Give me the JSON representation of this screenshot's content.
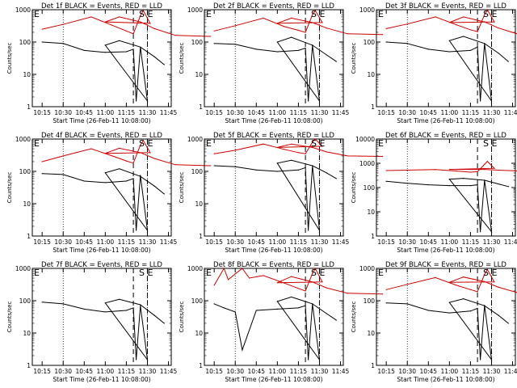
{
  "chart_data": [
    {
      "type": "line",
      "title": "Det 1f BLACK = Events, RED = LLD",
      "ylabel": "Counts/sec",
      "xlabel": "Start Time (26-Feb-11 10:08:00)",
      "yscale": "log",
      "ylim": [
        1,
        1000
      ],
      "y_tick_labels": [
        "1",
        "10",
        "100",
        "1000"
      ],
      "x_tick_labels": [
        "10:15",
        "10:30",
        "10:45",
        "11:00",
        "11:15",
        "11:30",
        "11:45"
      ],
      "markers": {
        "E1": "E",
        "S": "S",
        "E2": "E"
      },
      "series": [
        {
          "color": "#cc0000",
          "x": [
            10.15,
            10.3,
            10.5,
            10.65,
            10.75,
            10.8,
            10.85,
            10.87,
            10.92,
            11.0,
            11.1,
            11.25,
            11.35,
            11.5,
            11.75
          ],
          "y": [
            250,
            350,
            600,
            330,
            220,
            180,
            650,
            950,
            380,
            420,
            600,
            420,
            260,
            160,
            150
          ]
        },
        {
          "color": "#000000",
          "x": [
            10.15,
            10.3,
            10.45,
            10.6,
            10.75,
            10.8,
            10.82,
            10.85,
            10.9,
            11.0,
            11.1,
            11.25,
            11.35,
            11.42
          ],
          "y": [
            100,
            90,
            55,
            48,
            50,
            60,
            1.5,
            70,
            1.5,
            80,
            110,
            70,
            35,
            20
          ]
        }
      ]
    },
    {
      "type": "line",
      "title": "Det 2f BLACK = Events, RED = LLD",
      "ylabel": "Counts/sec",
      "xlabel": "Start Time (26-Feb-11 10:08:00)",
      "yscale": "log",
      "ylim": [
        1,
        1000
      ],
      "y_tick_labels": [
        "1",
        "10",
        "100",
        "1000"
      ],
      "x_tick_labels": [
        "10:15",
        "10:30",
        "10:45",
        "11:00",
        "11:15",
        "11:30",
        "11:45"
      ],
      "markers": {
        "E1": "E",
        "S": "S",
        "E2": "E"
      },
      "series": [
        {
          "color": "#cc0000",
          "x": [
            10.15,
            10.3,
            10.5,
            10.65,
            10.75,
            10.8,
            10.85,
            10.87,
            10.92,
            11.0,
            11.1,
            11.25,
            11.35,
            11.5,
            11.75
          ],
          "y": [
            220,
            320,
            550,
            300,
            230,
            200,
            700,
            950,
            400,
            380,
            550,
            400,
            270,
            180,
            170
          ]
        },
        {
          "color": "#000000",
          "x": [
            10.15,
            10.3,
            10.45,
            10.6,
            10.75,
            10.8,
            10.82,
            10.85,
            10.9,
            11.0,
            11.1,
            11.25,
            11.35,
            11.42
          ],
          "y": [
            90,
            85,
            60,
            50,
            55,
            65,
            1.5,
            80,
            1.5,
            100,
            140,
            80,
            40,
            25
          ]
        }
      ]
    },
    {
      "type": "line",
      "title": "Det 3f BLACK = Events, RED = LLD",
      "ylabel": "Counts/sec",
      "xlabel": "Start Time (26-Feb-11 10:08:00)",
      "yscale": "log",
      "ylim": [
        1,
        1000
      ],
      "y_tick_labels": [
        "1",
        "10",
        "100",
        "1000"
      ],
      "x_tick_labels": [
        "10:15",
        "10:30",
        "10:45",
        "11:00",
        "11:15",
        "11:30",
        "11:45"
      ],
      "markers": {
        "E1": "E",
        "S": "S",
        "E2": "E"
      },
      "series": [
        {
          "color": "#cc0000",
          "x": [
            10.15,
            10.3,
            10.5,
            10.65,
            10.75,
            10.8,
            10.85,
            10.87,
            10.92,
            11.0,
            11.1,
            11.25,
            11.35,
            11.5,
            11.75
          ],
          "y": [
            260,
            360,
            600,
            340,
            240,
            210,
            700,
            1000,
            420,
            400,
            600,
            420,
            270,
            170,
            160
          ]
        },
        {
          "color": "#000000",
          "x": [
            10.15,
            10.3,
            10.45,
            10.6,
            10.75,
            10.8,
            10.82,
            10.85,
            10.9,
            11.0,
            11.1,
            11.25,
            11.35,
            11.42
          ],
          "y": [
            100,
            90,
            60,
            50,
            55,
            70,
            1.5,
            90,
            1.5,
            110,
            150,
            90,
            45,
            25
          ]
        }
      ]
    },
    {
      "type": "line",
      "title": "Det 4f BLACK = Events, RED = LLD",
      "ylabel": "Counts/sec",
      "xlabel": "Start Time (26-Feb-11 10:08:00)",
      "yscale": "log",
      "ylim": [
        1,
        1000
      ],
      "y_tick_labels": [
        "1",
        "10",
        "100",
        "1000"
      ],
      "x_tick_labels": [
        "10:15",
        "10:30",
        "10:45",
        "11:00",
        "11:15",
        "11:30",
        "11:45"
      ],
      "markers": {
        "E1": "E",
        "S": "S",
        "E2": "E"
      },
      "series": [
        {
          "color": "#cc0000",
          "x": [
            10.15,
            10.3,
            10.5,
            10.65,
            10.75,
            10.8,
            10.85,
            10.87,
            10.92,
            11.0,
            11.1,
            11.25,
            11.35,
            11.5,
            11.75
          ],
          "y": [
            200,
            300,
            500,
            300,
            210,
            180,
            650,
            900,
            380,
            360,
            520,
            380,
            250,
            160,
            150
          ]
        },
        {
          "color": "#000000",
          "x": [
            10.15,
            10.3,
            10.45,
            10.6,
            10.75,
            10.8,
            10.82,
            10.85,
            10.9,
            11.0,
            11.1,
            11.25,
            11.35,
            11.42
          ],
          "y": [
            85,
            80,
            50,
            45,
            50,
            60,
            1.5,
            75,
            1.5,
            90,
            120,
            70,
            35,
            20
          ]
        }
      ]
    },
    {
      "type": "line",
      "title": "Det 5f BLACK = Events, RED = LLD",
      "ylabel": "Counts/sec",
      "xlabel": "Start Time (26-Feb-11 10:08:00)",
      "yscale": "log",
      "ylim": [
        1,
        1000
      ],
      "y_tick_labels": [
        "1",
        "10",
        "100",
        "1000"
      ],
      "x_tick_labels": [
        "10:15",
        "10:30",
        "10:45",
        "11:00",
        "11:15",
        "11:30",
        "11:45"
      ],
      "markers": {
        "E1": "E",
        "S": "S",
        "E2": "E"
      },
      "series": [
        {
          "color": "#cc0000",
          "x": [
            10.15,
            10.3,
            10.5,
            10.65,
            10.75,
            10.8,
            10.85,
            10.87,
            10.92,
            11.0,
            11.1,
            11.25,
            11.35,
            11.5,
            11.75
          ],
          "y": [
            350,
            450,
            700,
            480,
            380,
            350,
            800,
            1000,
            600,
            550,
            700,
            550,
            400,
            300,
            290
          ]
        },
        {
          "color": "#000000",
          "x": [
            10.15,
            10.3,
            10.45,
            10.6,
            10.75,
            10.8,
            10.82,
            10.85,
            10.9,
            11.0,
            11.1,
            11.25,
            11.35,
            11.42
          ],
          "y": [
            150,
            140,
            110,
            100,
            110,
            130,
            1.5,
            150,
            1.5,
            180,
            220,
            150,
            90,
            60
          ]
        }
      ]
    },
    {
      "type": "line",
      "title": "Det 6f BLACK = Events, RED = LLD",
      "ylabel": "Counts/sec",
      "xlabel": "Start Time (26-Feb-11 10:08:00)",
      "yscale": "log",
      "ylim": [
        1,
        10000
      ],
      "y_tick_labels": [
        "1",
        "10",
        "100",
        "1000",
        "10000"
      ],
      "x_tick_labels": [
        "10:15",
        "10:30",
        "10:45",
        "11:00",
        "11:15",
        "11:30",
        "11:45"
      ],
      "markers": {
        "E1": "E",
        "S": "S",
        "E2": "E"
      },
      "series": [
        {
          "color": "#cc0000",
          "x": [
            10.15,
            10.3,
            10.5,
            10.65,
            10.75,
            10.8,
            10.85,
            10.87,
            10.92,
            11.0,
            11.1,
            11.25,
            11.35,
            11.5,
            11.75
          ],
          "y": [
            500,
            520,
            550,
            480,
            430,
            450,
            900,
            1200,
            620,
            560,
            560,
            560,
            520,
            480,
            470
          ]
        },
        {
          "color": "#000000",
          "x": [
            10.15,
            10.3,
            10.45,
            10.6,
            10.75,
            10.8,
            10.82,
            10.85,
            10.9,
            11.0,
            11.1,
            11.25,
            11.35,
            11.42
          ],
          "y": [
            180,
            150,
            130,
            120,
            120,
            130,
            1.5,
            200,
            1.5,
            220,
            240,
            200,
            140,
            110
          ]
        }
      ]
    },
    {
      "type": "line",
      "title": "Det 7f BLACK = Events, RED = LLD",
      "ylabel": "Counts/sec",
      "xlabel": "Start Time (26-Feb-11 10:08:00)",
      "yscale": "log",
      "ylim": [
        1,
        1000
      ],
      "y_tick_labels": [
        "1",
        "10",
        "100",
        "1000"
      ],
      "x_tick_labels": [
        "10:15",
        "10:30",
        "10:45",
        "11:00",
        "11:15",
        "11:30",
        "11:45"
      ],
      "markers": {
        "E1": "E",
        "S": "S",
        "E2": "E"
      },
      "series": [
        {
          "color": "#000000",
          "x": [
            10.15,
            10.3,
            10.45,
            10.6,
            10.75,
            10.8,
            10.82,
            10.85,
            10.9,
            11.0,
            11.1,
            11.25,
            11.35,
            11.42
          ],
          "y": [
            90,
            80,
            55,
            45,
            50,
            60,
            1.5,
            70,
            1.5,
            85,
            110,
            75,
            35,
            20
          ]
        }
      ]
    },
    {
      "type": "line",
      "title": "Det 8f BLACK = Events, RED = LLD",
      "ylabel": "Counts/sec",
      "xlabel": "Start Time (26-Feb-11 10:08:00)",
      "yscale": "log",
      "ylim": [
        1,
        1000
      ],
      "y_tick_labels": [
        "1",
        "10",
        "100",
        "1000"
      ],
      "x_tick_labels": [
        "10:15",
        "10:30",
        "10:45",
        "11:00",
        "11:15",
        "11:30",
        "11:45"
      ],
      "markers": {
        "E1": "E",
        "S": "S",
        "E2": "E"
      },
      "series": [
        {
          "color": "#cc0000",
          "x": [
            10.15,
            10.22,
            10.25,
            10.35,
            10.4,
            10.5,
            10.65,
            10.75,
            10.8,
            10.85,
            10.87,
            10.92,
            11.0,
            11.1,
            11.25,
            11.35,
            11.5,
            11.75
          ],
          "y": [
            300,
            1000,
            450,
            1000,
            500,
            600,
            350,
            240,
            200,
            700,
            1000,
            380,
            360,
            560,
            380,
            250,
            170,
            160
          ]
        },
        {
          "color": "#000000",
          "x": [
            10.15,
            10.22,
            10.3,
            10.35,
            10.45,
            10.6,
            10.75,
            10.8,
            10.82,
            10.85,
            10.9,
            11.0,
            11.1,
            11.25,
            11.35,
            11.42
          ],
          "y": [
            80,
            60,
            45,
            3,
            50,
            55,
            60,
            70,
            1.5,
            80,
            1.5,
            95,
            130,
            80,
            40,
            25
          ]
        }
      ]
    },
    {
      "type": "line",
      "title": "Det 9f BLACK = Events, RED = LLD",
      "ylabel": "Counts/sec",
      "xlabel": "Start Time (26-Feb-11 10:08:00)",
      "yscale": "log",
      "ylim": [
        1,
        1000
      ],
      "y_tick_labels": [
        "1",
        "10",
        "100",
        "1000"
      ],
      "x_tick_labels": [
        "10:15",
        "10:30",
        "10:45",
        "11:00",
        "11:15",
        "11:30",
        "11:45"
      ],
      "markers": {
        "E1": "E",
        "S": "S",
        "E2": "E"
      },
      "series": [
        {
          "color": "#cc0000",
          "x": [
            10.15,
            10.3,
            10.5,
            10.65,
            10.75,
            10.8,
            10.85,
            10.87,
            10.92,
            11.0,
            11.1,
            11.25,
            11.35,
            11.5,
            11.75
          ],
          "y": [
            220,
            320,
            520,
            300,
            220,
            190,
            650,
            920,
            380,
            370,
            540,
            390,
            260,
            170,
            160
          ]
        },
        {
          "color": "#000000",
          "x": [
            10.15,
            10.3,
            10.45,
            10.6,
            10.75,
            10.8,
            10.82,
            10.85,
            10.9,
            11.0,
            11.1,
            11.25,
            11.35,
            11.42
          ],
          "y": [
            85,
            80,
            50,
            42,
            48,
            58,
            1.5,
            72,
            1.5,
            88,
            115,
            70,
            35,
            20
          ]
        }
      ]
    }
  ]
}
